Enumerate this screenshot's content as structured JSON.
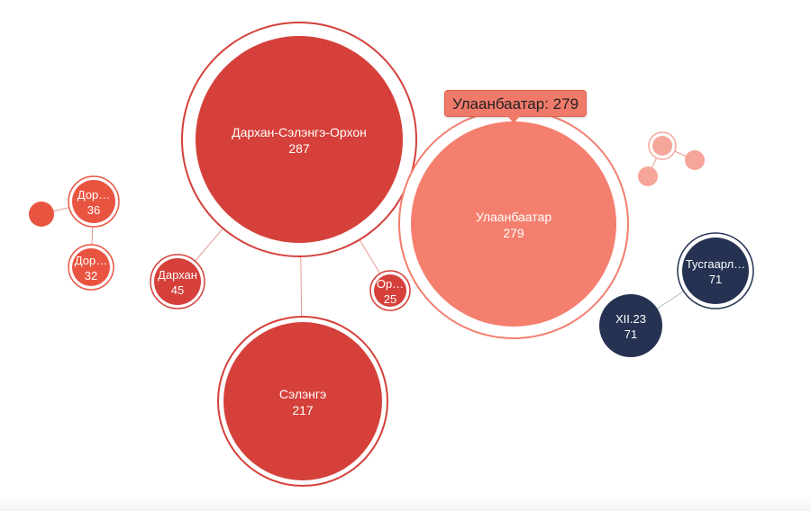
{
  "tooltip": {
    "text": "Улаанбаатар: 279"
  },
  "colors": {
    "dark_red": "#d5403a",
    "orange_red": "#e95441",
    "salmon": "#f47f6e",
    "light_salmon": "#f6a59a",
    "navy": "#253252",
    "link": "#e79a93",
    "link_dark": "#b7bcc8"
  },
  "nodes": [
    {
      "id": "darkhan-selenge-orkhon",
      "name": "Дархан-Сэлэнгэ-Орхон",
      "value": "287",
      "color": "dark_red",
      "ring": true
    },
    {
      "id": "selenge",
      "name": "Сэлэнгэ",
      "value": "217",
      "color": "dark_red",
      "ring": true
    },
    {
      "id": "darkhan",
      "name": "Дархан",
      "value": "45",
      "color": "dark_red",
      "ring": true
    },
    {
      "id": "orkhon",
      "name": "Ор…",
      "value": "25",
      "color": "dark_red",
      "ring": true
    },
    {
      "id": "ulaanbaatar",
      "name": "Улаанбаатар",
      "value": "279",
      "color": "salmon",
      "ring": true
    },
    {
      "id": "dornod-1",
      "name": "Дор…",
      "value": "36",
      "color": "orange_red",
      "ring": true
    },
    {
      "id": "dornod-2",
      "name": "Дор…",
      "value": "32",
      "color": "orange_red",
      "ring": true
    },
    {
      "id": "small-orange",
      "name": "",
      "value": "",
      "color": "orange_red",
      "ring": false
    },
    {
      "id": "tusgaarl",
      "name": "Тусгаарл…",
      "value": "71",
      "color": "navy",
      "ring": true
    },
    {
      "id": "xii23",
      "name": "XII.23",
      "value": "71",
      "color": "navy",
      "ring": false
    },
    {
      "id": "pink-ringed",
      "name": "",
      "value": "",
      "color": "light_salmon",
      "ring": true
    },
    {
      "id": "pink-left",
      "name": "",
      "value": "",
      "color": "light_salmon",
      "ring": false
    },
    {
      "id": "pink-right",
      "name": "",
      "value": "",
      "color": "light_salmon",
      "ring": false
    }
  ],
  "links": [
    [
      "darkhan-selenge-orkhon",
      "selenge"
    ],
    [
      "darkhan-selenge-orkhon",
      "darkhan"
    ],
    [
      "darkhan-selenge-orkhon",
      "orkhon"
    ],
    [
      "dornod-1",
      "small-orange"
    ],
    [
      "dornod-1",
      "dornod-2"
    ],
    [
      "tusgaarl",
      "xii23"
    ],
    [
      "pink-ringed",
      "pink-left"
    ],
    [
      "pink-ringed",
      "pink-right"
    ]
  ]
}
